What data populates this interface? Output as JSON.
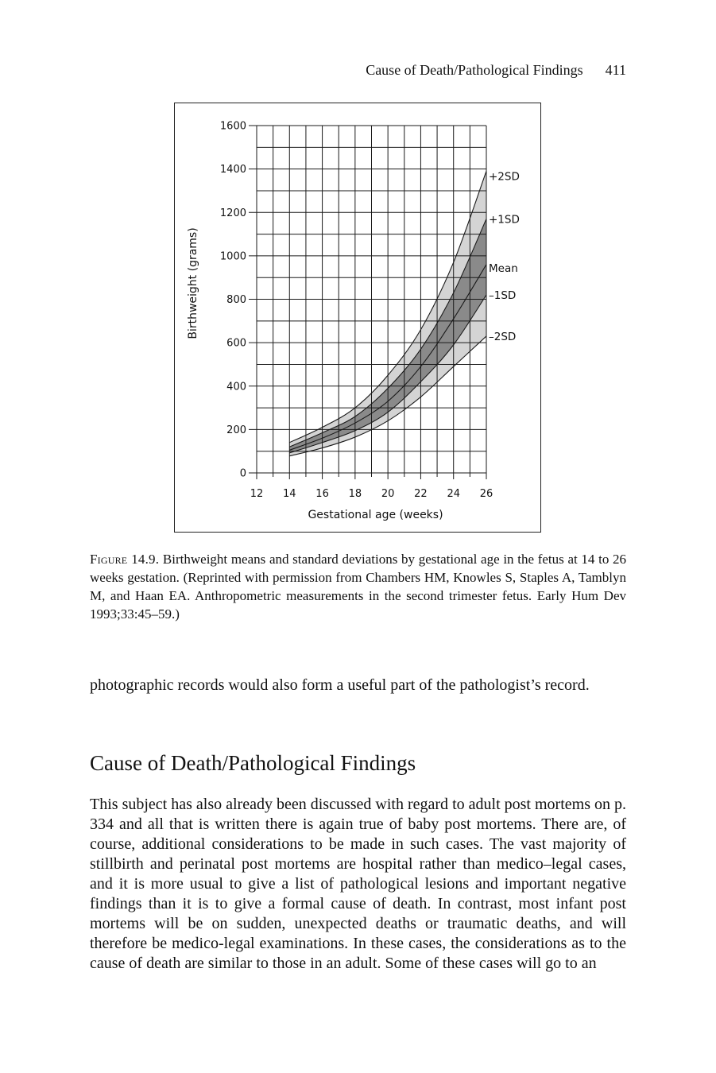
{
  "running_head": {
    "title": "Cause of Death/Pathological Findings",
    "page_number": "411"
  },
  "figure": {
    "label": "Figure 14.9.",
    "caption": "Birthweight means and standard deviations by gestational age in the fetus at 14 to 26 weeks gestation. (Reprinted with permission from Chambers HM, Knowles S, Staples A, Tamblyn M, and Haan EA. Anthropometric measurements in the second trimester fetus. Early Hum Dev 1993;33:45–59.)"
  },
  "chart_data": {
    "type": "line",
    "title": "",
    "xlabel": "Gestational age (weeks)",
    "ylabel": "Birthweight (grams)",
    "xlim": [
      12,
      26
    ],
    "ylim": [
      0,
      1600
    ],
    "x_ticks": [
      "12",
      "14",
      "16",
      "18",
      "20",
      "22",
      "24",
      "26"
    ],
    "y_ticks": [
      "0",
      "200",
      "400",
      "600",
      "800",
      "1000",
      "1200",
      "1400",
      "1600"
    ],
    "grid": true,
    "x": [
      14,
      16,
      18,
      20,
      22,
      24,
      26
    ],
    "series": [
      {
        "name": "+2SD",
        "values": [
          140,
          210,
          300,
          450,
          660,
          970,
          1390
        ]
      },
      {
        "name": "+1SD",
        "values": [
          120,
          185,
          260,
          390,
          570,
          830,
          1170
        ]
      },
      {
        "name": "Mean",
        "values": [
          105,
          160,
          230,
          330,
          490,
          710,
          960
        ]
      },
      {
        "name": "–1SD",
        "values": [
          92,
          140,
          195,
          280,
          420,
          590,
          820
        ]
      },
      {
        "name": "–2SD",
        "values": [
          78,
          115,
          165,
          240,
          350,
          490,
          630
        ]
      }
    ],
    "colors": {
      "outer_band": "#d4d4d4",
      "inner_band": "#8a8a8a",
      "line": "#1a1a1a",
      "grid": "#1a1a1a"
    }
  },
  "body": {
    "paragraph1": "photographic records would also form a useful part of the pathologist’s record.",
    "heading": "Cause of Death/Pathological Findings",
    "paragraph2": "This subject has also already been discussed with regard to adult post mortems on p. 334 and all that is written there is again true of baby post mortems. There are, of course, additional considerations to be made in such cases. The vast majority of stillbirth and perinatal post mortems are hospital rather than medico–legal cases, and it is more usual to give a list of pathological lesions and important negative findings than it is to give a formal cause of death. In contrast, most infant post mortems will be on sudden, unexpected deaths or traumatic deaths, and will therefore be medico-legal examinations. In these cases, the considerations as to the cause of death are similar to those in an adult. Some of these cases will go to an"
  }
}
